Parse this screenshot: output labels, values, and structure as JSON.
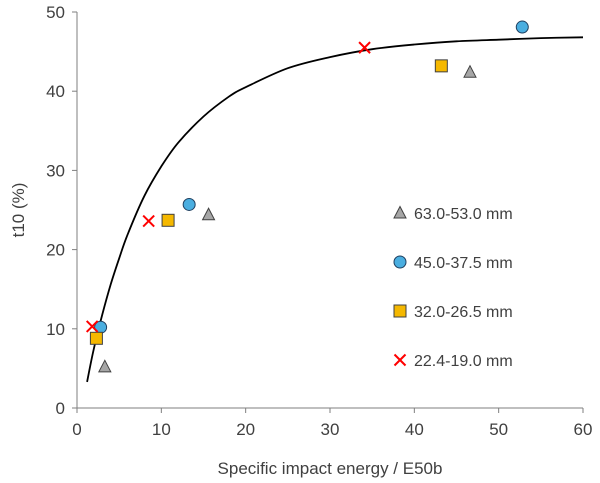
{
  "chart_data": {
    "type": "scatter",
    "title": "",
    "xlabel": "Specific impact energy / E50b",
    "ylabel": "t10 (%)",
    "xlim": [
      0,
      60
    ],
    "ylim": [
      0,
      50
    ],
    "xticks": [
      "0",
      "10",
      "20",
      "30",
      "40",
      "50",
      "60"
    ],
    "yticks": [
      "0",
      "10",
      "20",
      "30",
      "40",
      "50"
    ],
    "grid": false,
    "legend_position": "right",
    "series": [
      {
        "name": "63.0-53.0 mm",
        "marker": "triangle",
        "color": "#a6a6a6",
        "points": [
          [
            3.3,
            5.2
          ],
          [
            15.6,
            24.4
          ],
          [
            46.6,
            42.4
          ]
        ]
      },
      {
        "name": "45.0-37.5 mm",
        "marker": "circle",
        "color": "#4aaee0",
        "points": [
          [
            2.8,
            10.2
          ],
          [
            13.3,
            25.7
          ],
          [
            52.8,
            48.1
          ]
        ]
      },
      {
        "name": "32.0-26.5 mm",
        "marker": "square",
        "color": "#f5b800",
        "points": [
          [
            2.3,
            8.8
          ],
          [
            10.8,
            23.7
          ],
          [
            43.2,
            43.2
          ]
        ]
      },
      {
        "name": "22.4-19.0 mm",
        "marker": "x",
        "color": "#ff0000",
        "points": [
          [
            1.8,
            10.3
          ],
          [
            8.5,
            23.6
          ],
          [
            34.1,
            45.5
          ]
        ]
      }
    ],
    "fit_curve": {
      "type": "line",
      "color": "#000000",
      "points": [
        [
          1.2,
          3.3
        ],
        [
          2,
          7.5
        ],
        [
          3,
          11.8
        ],
        [
          4,
          15.6
        ],
        [
          5,
          18.9
        ],
        [
          6,
          21.9
        ],
        [
          8,
          26.8
        ],
        [
          10,
          30.5
        ],
        [
          12,
          33.5
        ],
        [
          15,
          36.8
        ],
        [
          18,
          39.3
        ],
        [
          20,
          40.5
        ],
        [
          25,
          42.9
        ],
        [
          30,
          44.3
        ],
        [
          35,
          45.3
        ],
        [
          40,
          45.9
        ],
        [
          45,
          46.3
        ],
        [
          50,
          46.5
        ],
        [
          55,
          46.7
        ],
        [
          60,
          46.8
        ]
      ]
    }
  }
}
